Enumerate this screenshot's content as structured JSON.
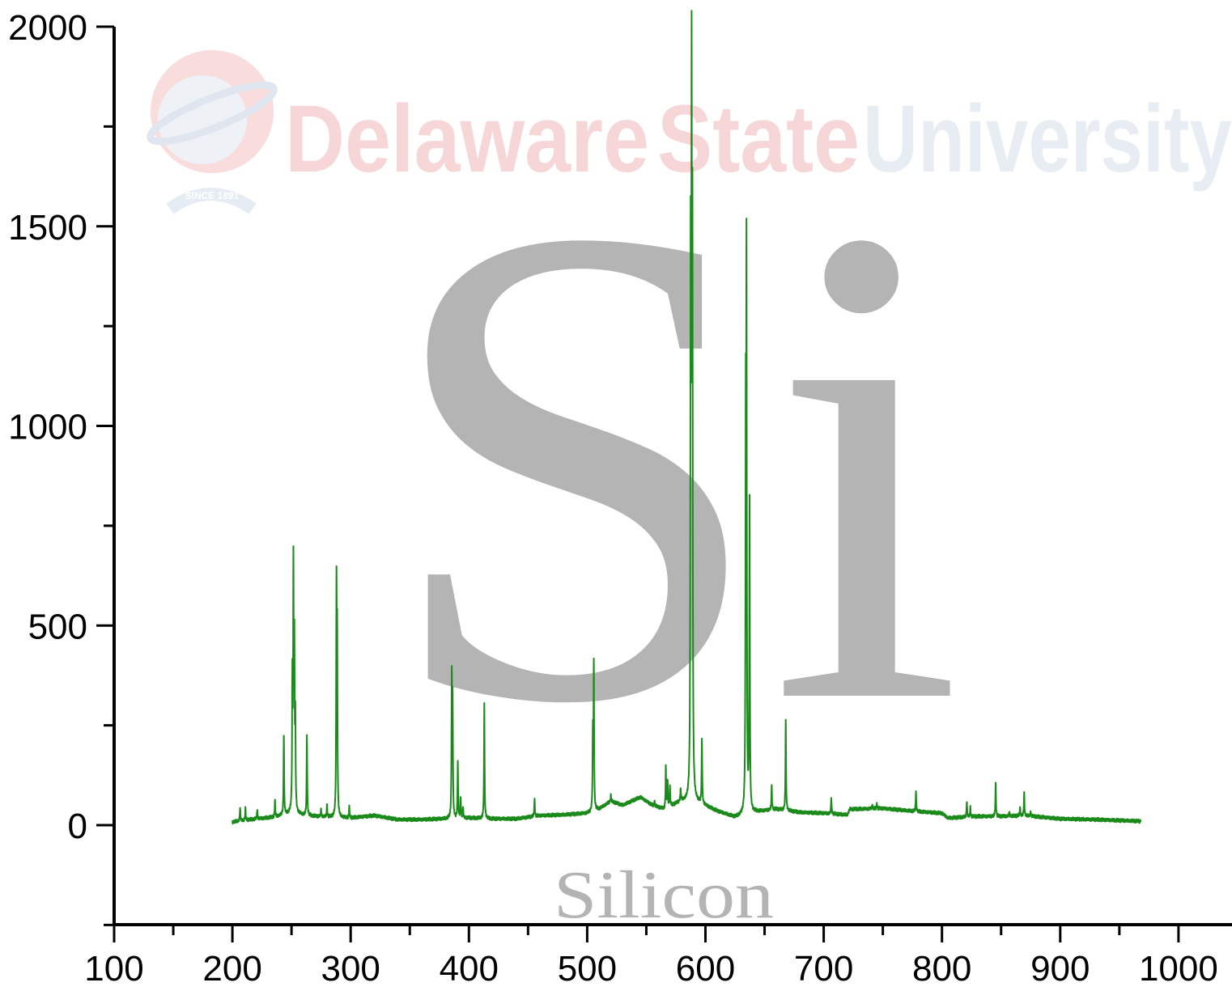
{
  "watermark": {
    "logo_word_1": "Delaware",
    "logo_word_2": "State",
    "logo_word_3": "University",
    "logo_since": "SINCE 1891",
    "color_red": "#f6d6d6",
    "color_blue": "#e8edf4"
  },
  "element": {
    "symbol": "Si",
    "name": "Silicon",
    "color": "#b4b4b4"
  },
  "chart_data": {
    "type": "line",
    "title": "",
    "xlabel": "",
    "ylabel": "",
    "xlim": [
      100,
      1050
    ],
    "ylim": [
      -250,
      2000
    ],
    "x_ticks": [
      100,
      200,
      300,
      400,
      500,
      600,
      700,
      800,
      900,
      1000
    ],
    "y_ticks": [
      0,
      500,
      1000,
      1500,
      2000
    ],
    "grid": false,
    "line_color": "#1a8a1a",
    "baseline": [
      [
        200,
        8
      ],
      [
        215,
        14
      ],
      [
        235,
        20
      ],
      [
        250,
        30
      ],
      [
        262,
        24
      ],
      [
        280,
        20
      ],
      [
        300,
        18
      ],
      [
        320,
        24
      ],
      [
        340,
        14
      ],
      [
        360,
        14
      ],
      [
        380,
        16
      ],
      [
        400,
        18
      ],
      [
        420,
        16
      ],
      [
        440,
        16
      ],
      [
        460,
        24
      ],
      [
        480,
        26
      ],
      [
        500,
        30
      ],
      [
        510,
        40
      ],
      [
        520,
        60
      ],
      [
        530,
        50
      ],
      [
        545,
        70
      ],
      [
        555,
        50
      ],
      [
        565,
        40
      ],
      [
        580,
        60
      ],
      [
        595,
        55
      ],
      [
        610,
        35
      ],
      [
        625,
        20
      ],
      [
        640,
        32
      ],
      [
        660,
        40
      ],
      [
        680,
        32
      ],
      [
        700,
        30
      ],
      [
        720,
        26
      ],
      [
        722,
        40
      ],
      [
        750,
        42
      ],
      [
        780,
        34
      ],
      [
        800,
        30
      ],
      [
        805,
        18
      ],
      [
        830,
        22
      ],
      [
        850,
        22
      ],
      [
        870,
        24
      ],
      [
        900,
        16
      ],
      [
        930,
        14
      ],
      [
        968,
        10
      ]
    ],
    "peaks": [
      {
        "x": 206.5,
        "y": 45
      },
      {
        "x": 211,
        "y": 42
      },
      {
        "x": 221,
        "y": 40
      },
      {
        "x": 236,
        "y": 60
      },
      {
        "x": 243.5,
        "y": 225
      },
      {
        "x": 250.7,
        "y": 350
      },
      {
        "x": 251.6,
        "y": 620
      },
      {
        "x": 252.4,
        "y": 415
      },
      {
        "x": 253.2,
        "y": 245
      },
      {
        "x": 263,
        "y": 225
      },
      {
        "x": 275,
        "y": 40
      },
      {
        "x": 280,
        "y": 50
      },
      {
        "x": 288,
        "y": 575
      },
      {
        "x": 288.6,
        "y": 440
      },
      {
        "x": 298.8,
        "y": 45
      },
      {
        "x": 390.6,
        "y": 160
      },
      {
        "x": 385.5,
        "y": 360
      },
      {
        "x": 386.2,
        "y": 300
      },
      {
        "x": 393,
        "y": 70
      },
      {
        "x": 395,
        "y": 45
      },
      {
        "x": 413,
        "y": 305
      },
      {
        "x": 455.5,
        "y": 65
      },
      {
        "x": 504.8,
        "y": 225
      },
      {
        "x": 505.6,
        "y": 395
      },
      {
        "x": 520,
        "y": 75
      },
      {
        "x": 557,
        "y": 60
      },
      {
        "x": 566.5,
        "y": 145
      },
      {
        "x": 568,
        "y": 110
      },
      {
        "x": 570,
        "y": 95
      },
      {
        "x": 579,
        "y": 90
      },
      {
        "x": 587.5,
        "y": 1350
      },
      {
        "x": 588.3,
        "y": 1720
      },
      {
        "x": 589,
        "y": 1370
      },
      {
        "x": 597,
        "y": 215
      },
      {
        "x": 634.1,
        "y": 940
      },
      {
        "x": 634.7,
        "y": 1345
      },
      {
        "x": 637.3,
        "y": 805
      },
      {
        "x": 656,
        "y": 100
      },
      {
        "x": 667.9,
        "y": 265
      },
      {
        "x": 706.4,
        "y": 70
      },
      {
        "x": 741,
        "y": 50
      },
      {
        "x": 745,
        "y": 55
      },
      {
        "x": 778,
        "y": 85
      },
      {
        "x": 821,
        "y": 60
      },
      {
        "x": 824,
        "y": 45
      },
      {
        "x": 845.4,
        "y": 105
      },
      {
        "x": 857,
        "y": 35
      },
      {
        "x": 866,
        "y": 45
      },
      {
        "x": 869.5,
        "y": 80
      },
      {
        "x": 875,
        "y": 35
      }
    ]
  }
}
